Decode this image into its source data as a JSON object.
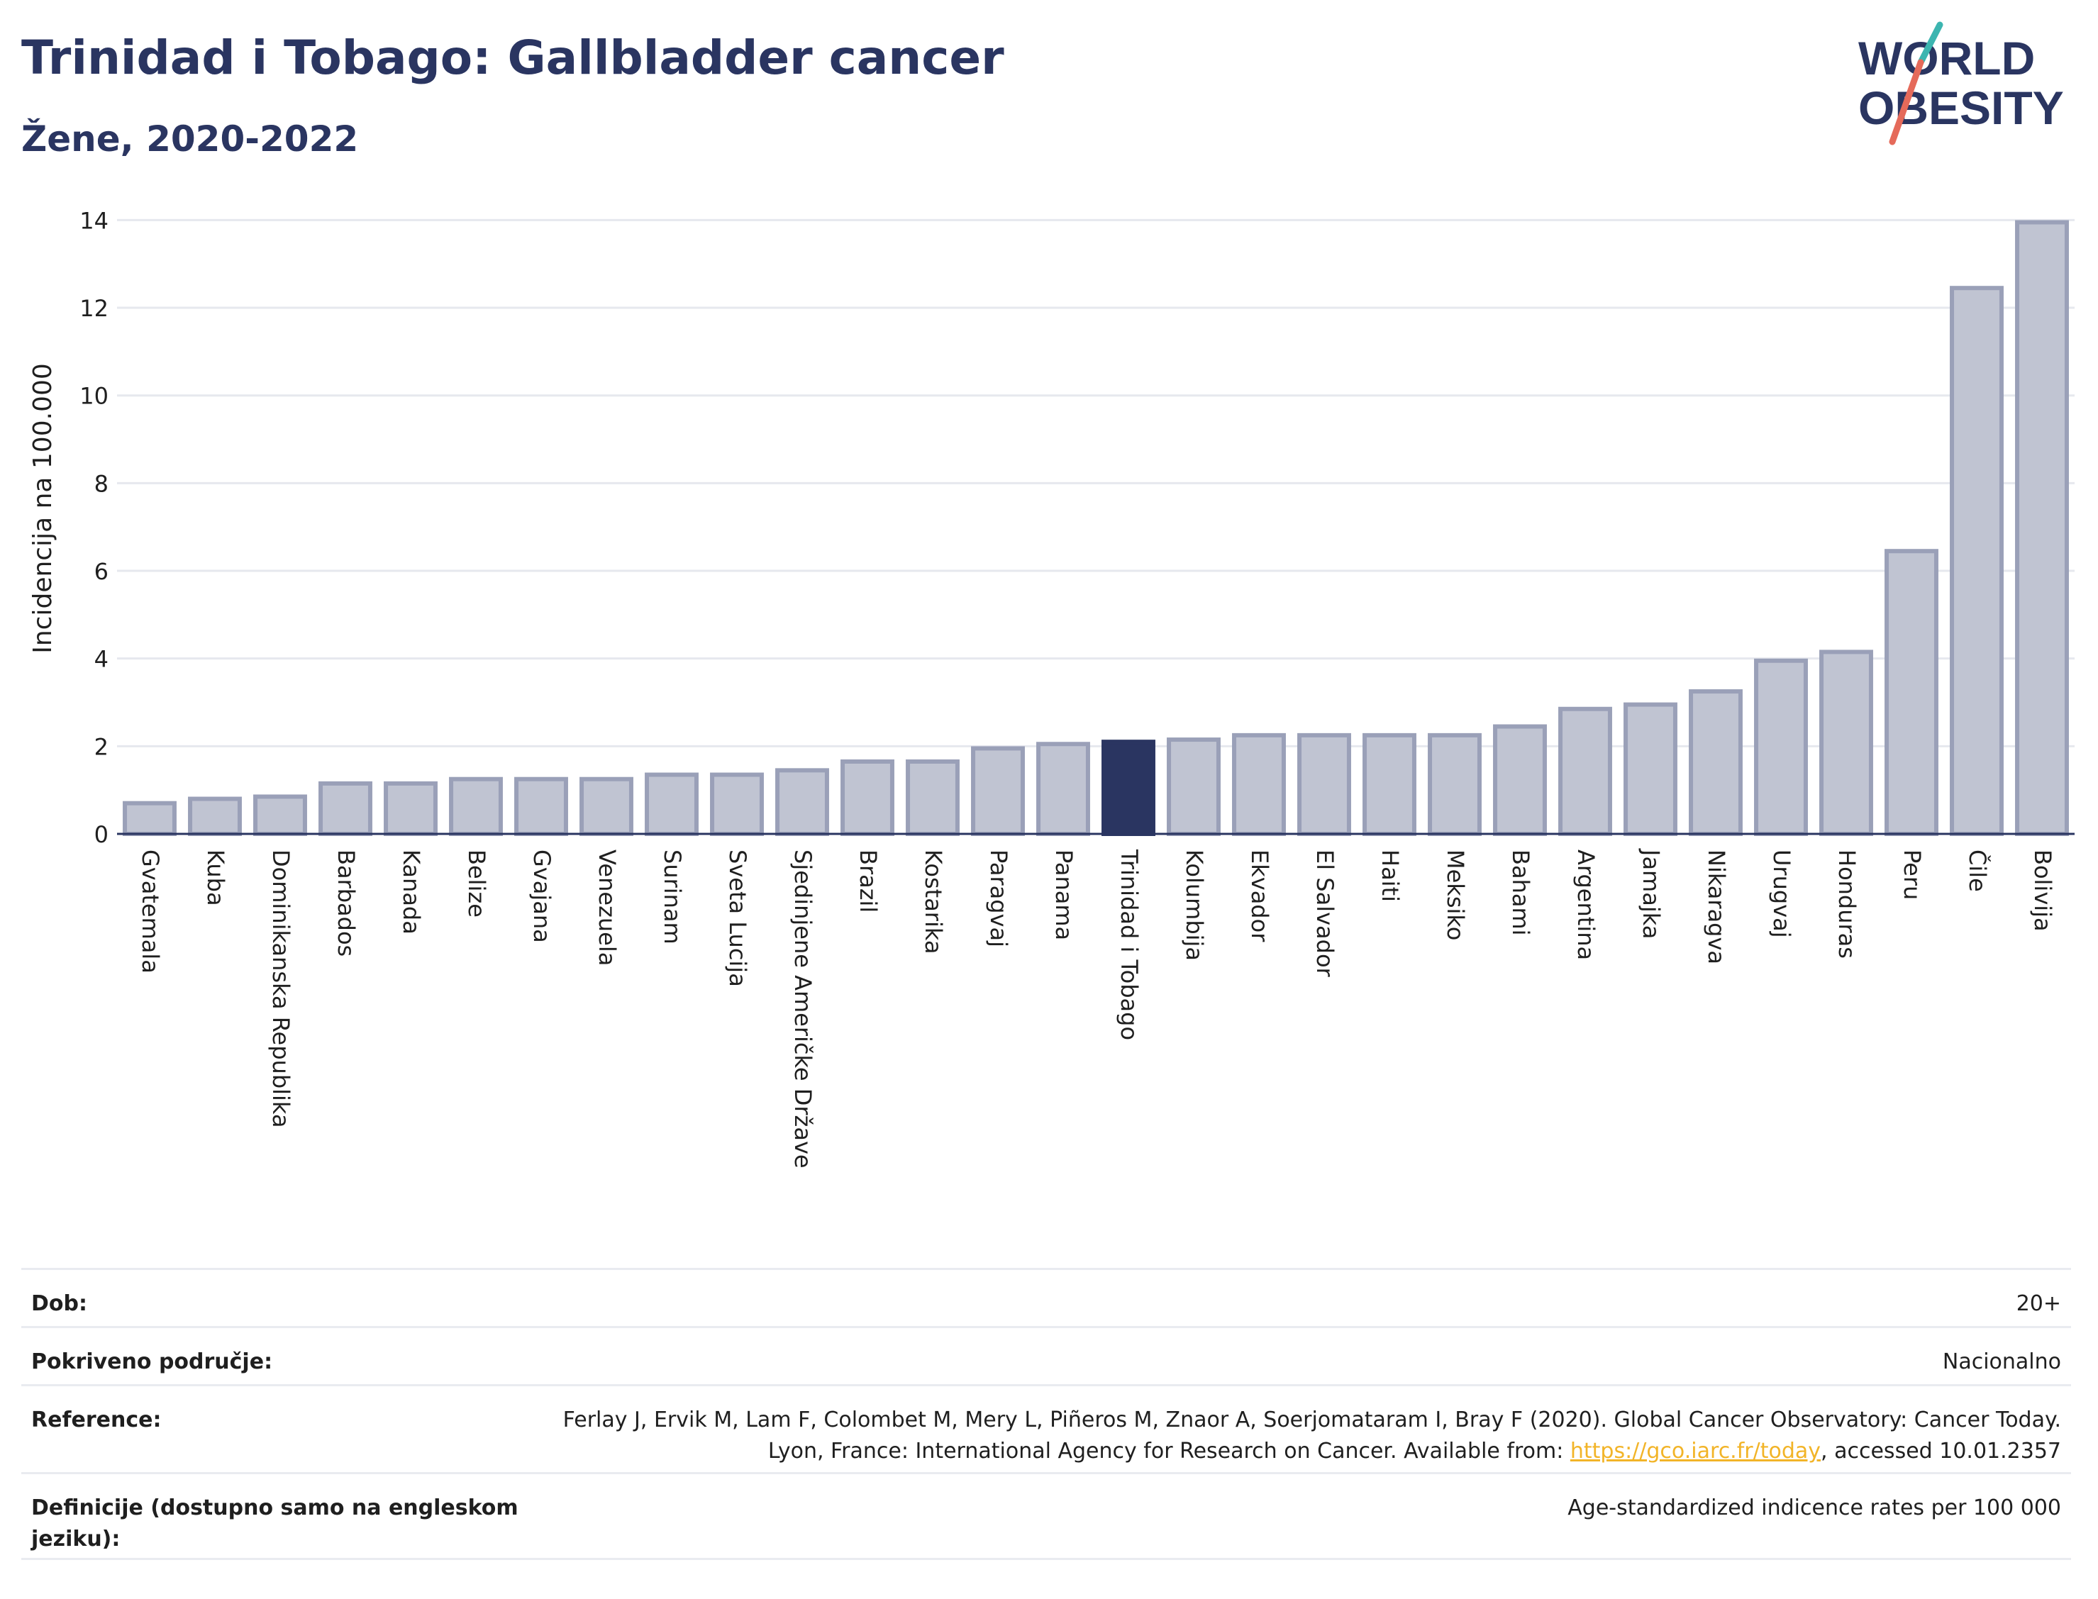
{
  "header": {
    "title": "Trinidad i Tobago: Gallbladder cancer",
    "subtitle": "Žene, 2020-2022"
  },
  "logo": {
    "line1": "WORLD",
    "line2": "OBESITY"
  },
  "chart_data": {
    "type": "bar",
    "ylabel": "Incidencija na 100.000",
    "ylim": [
      0,
      14.2
    ],
    "yticks": [
      0,
      2,
      4,
      6,
      8,
      10,
      12,
      14
    ],
    "grid": true,
    "highlight": "Trinidad i Tobago",
    "colors": {
      "bar": "#c0c4d2",
      "bar_edge": "#9aa0b8",
      "highlight": "#2a3561",
      "axis": "#2a3561",
      "grid": "#e6e8ee"
    },
    "categories": [
      "Gvatemala",
      "Kuba",
      "Dominikanska Republika",
      "Barbados",
      "Kanada",
      "Belize",
      "Gvajana",
      "Venezuela",
      "Surinam",
      "Sveta Lucija",
      "Sjedinjene Američke Države",
      "Brazil",
      "Kostarika",
      "Paragvaj",
      "Panama",
      "Trinidad i Tobago",
      "Kolumbija",
      "Ekvador",
      "El Salvador",
      "Haiti",
      "Meksiko",
      "Bahami",
      "Argentina",
      "Jamajka",
      "Nikaragva",
      "Urugvaj",
      "Honduras",
      "Peru",
      "Čile",
      "Bolivija"
    ],
    "values": [
      0.7,
      0.8,
      0.85,
      1.15,
      1.15,
      1.25,
      1.25,
      1.25,
      1.35,
      1.35,
      1.45,
      1.65,
      1.65,
      1.95,
      2.05,
      2.1,
      2.15,
      2.25,
      2.25,
      2.25,
      2.25,
      2.45,
      2.85,
      2.95,
      3.25,
      3.95,
      4.15,
      6.45,
      12.45,
      13.95
    ]
  },
  "meta": [
    {
      "label": "Dob:",
      "value": "20+"
    },
    {
      "label": "Pokriveno područje:",
      "value": "Nacionalno"
    },
    {
      "label": "Reference:",
      "value_pre": "Ferlay J, Ervik M, Lam F, Colombet M, Mery L, Piñeros M, Znaor A, Soerjomataram I, Bray F (2020). Global Cancer Observatory: Cancer Today. Lyon, France: International Agency for Research on Cancer. Available from: ",
      "link": "https://gco.iarc.fr/today",
      "value_post": ", accessed 10.01.2357"
    },
    {
      "label": "Definicije (dostupno samo na engleskom jeziku):",
      "value": "Age-standardized indicence rates per 100 000"
    }
  ]
}
